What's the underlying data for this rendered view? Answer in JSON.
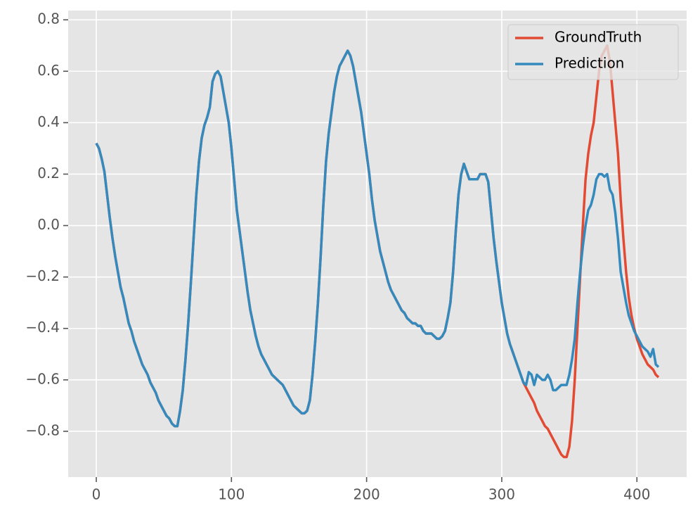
{
  "chart_data": {
    "type": "line",
    "x": [
      0,
      2,
      4,
      6,
      8,
      10,
      12,
      14,
      16,
      18,
      20,
      22,
      24,
      26,
      28,
      30,
      32,
      34,
      36,
      38,
      40,
      42,
      44,
      46,
      48,
      50,
      52,
      54,
      56,
      58,
      60,
      62,
      64,
      66,
      68,
      70,
      72,
      74,
      76,
      78,
      80,
      82,
      84,
      86,
      88,
      90,
      92,
      94,
      96,
      98,
      100,
      102,
      104,
      106,
      108,
      110,
      112,
      114,
      116,
      118,
      120,
      122,
      124,
      126,
      128,
      130,
      132,
      134,
      136,
      138,
      140,
      142,
      144,
      146,
      148,
      150,
      152,
      154,
      156,
      158,
      160,
      162,
      164,
      166,
      168,
      170,
      172,
      174,
      176,
      178,
      180,
      182,
      184,
      186,
      188,
      190,
      192,
      194,
      196,
      198,
      200,
      202,
      204,
      206,
      208,
      210,
      212,
      214,
      216,
      218,
      220,
      222,
      224,
      226,
      228,
      230,
      232,
      234,
      236,
      238,
      240,
      242,
      244,
      246,
      248,
      250,
      252,
      254,
      256,
      258,
      260,
      262,
      264,
      266,
      268,
      270,
      272,
      274,
      276,
      278,
      280,
      282,
      284,
      286,
      288,
      290,
      292,
      294,
      296,
      298,
      300,
      302,
      304,
      306,
      308,
      310,
      312,
      314,
      316,
      318,
      320,
      322,
      324,
      326,
      328,
      330,
      332,
      334,
      336,
      338,
      340,
      342,
      344,
      346,
      348,
      350,
      352,
      354,
      356,
      358,
      360,
      362,
      364,
      366,
      368,
      370,
      372,
      374,
      376,
      378,
      380,
      382,
      384,
      386,
      388,
      390,
      392,
      394,
      396,
      398,
      400,
      402,
      404,
      406,
      408,
      410,
      412,
      414,
      416
    ],
    "series": [
      {
        "name": "GroundTruth",
        "color": "#E24A33",
        "values": [
          0.32,
          0.3,
          0.26,
          0.21,
          0.12,
          0.03,
          -0.05,
          -0.12,
          -0.18,
          -0.24,
          -0.28,
          -0.33,
          -0.38,
          -0.41,
          -0.45,
          -0.48,
          -0.51,
          -0.54,
          -0.56,
          -0.58,
          -0.61,
          -0.63,
          -0.65,
          -0.68,
          -0.7,
          -0.72,
          -0.74,
          -0.75,
          -0.77,
          -0.78,
          -0.78,
          -0.72,
          -0.64,
          -0.52,
          -0.38,
          -0.22,
          -0.05,
          0.12,
          0.25,
          0.34,
          0.39,
          0.42,
          0.46,
          0.56,
          0.59,
          0.6,
          0.58,
          0.52,
          0.46,
          0.4,
          0.3,
          0.18,
          0.06,
          -0.02,
          -0.1,
          -0.18,
          -0.26,
          -0.33,
          -0.38,
          -0.43,
          -0.47,
          -0.5,
          -0.52,
          -0.54,
          -0.56,
          -0.58,
          -0.59,
          -0.6,
          -0.61,
          -0.62,
          -0.64,
          -0.66,
          -0.68,
          -0.7,
          -0.71,
          -0.72,
          -0.73,
          -0.73,
          -0.72,
          -0.68,
          -0.58,
          -0.45,
          -0.3,
          -0.12,
          0.08,
          0.25,
          0.36,
          0.44,
          0.52,
          0.58,
          0.62,
          0.64,
          0.66,
          0.68,
          0.66,
          0.62,
          0.56,
          0.5,
          0.44,
          0.36,
          0.28,
          0.2,
          0.1,
          0.02,
          -0.04,
          -0.1,
          -0.14,
          -0.18,
          -0.22,
          -0.25,
          -0.27,
          -0.29,
          -0.31,
          -0.33,
          -0.34,
          -0.36,
          -0.37,
          -0.38,
          -0.38,
          -0.39,
          -0.39,
          -0.41,
          -0.42,
          -0.42,
          -0.42,
          -0.43,
          -0.44,
          -0.44,
          -0.43,
          -0.41,
          -0.36,
          -0.3,
          -0.18,
          -0.02,
          0.12,
          0.2,
          0.24,
          0.21,
          0.18,
          0.18,
          0.18,
          0.18,
          0.2,
          0.2,
          0.2,
          0.17,
          0.06,
          -0.05,
          -0.14,
          -0.22,
          -0.3,
          -0.36,
          -0.42,
          -0.46,
          -0.49,
          -0.52,
          -0.55,
          -0.58,
          -0.61,
          -0.63,
          -0.65,
          -0.67,
          -0.69,
          -0.72,
          -0.74,
          -0.76,
          -0.78,
          -0.79,
          -0.81,
          -0.83,
          -0.85,
          -0.87,
          -0.89,
          -0.9,
          -0.9,
          -0.86,
          -0.76,
          -0.6,
          -0.4,
          -0.2,
          0.0,
          0.18,
          0.28,
          0.35,
          0.4,
          0.5,
          0.6,
          0.66,
          0.68,
          0.7,
          0.64,
          0.52,
          0.4,
          0.28,
          0.1,
          -0.05,
          -0.18,
          -0.28,
          -0.35,
          -0.4,
          -0.44,
          -0.47,
          -0.5,
          -0.52,
          -0.54,
          -0.55,
          -0.56,
          -0.58,
          -0.59
        ]
      },
      {
        "name": "Prediction",
        "color": "#348ABD",
        "values": [
          0.32,
          0.3,
          0.26,
          0.21,
          0.12,
          0.03,
          -0.05,
          -0.12,
          -0.18,
          -0.24,
          -0.28,
          -0.33,
          -0.38,
          -0.41,
          -0.45,
          -0.48,
          -0.51,
          -0.54,
          -0.56,
          -0.58,
          -0.61,
          -0.63,
          -0.65,
          -0.68,
          -0.7,
          -0.72,
          -0.74,
          -0.75,
          -0.77,
          -0.78,
          -0.78,
          -0.72,
          -0.64,
          -0.52,
          -0.38,
          -0.22,
          -0.05,
          0.12,
          0.25,
          0.34,
          0.39,
          0.42,
          0.46,
          0.56,
          0.59,
          0.6,
          0.58,
          0.52,
          0.46,
          0.4,
          0.3,
          0.18,
          0.06,
          -0.02,
          -0.1,
          -0.18,
          -0.26,
          -0.33,
          -0.38,
          -0.43,
          -0.47,
          -0.5,
          -0.52,
          -0.54,
          -0.56,
          -0.58,
          -0.59,
          -0.6,
          -0.61,
          -0.62,
          -0.64,
          -0.66,
          -0.68,
          -0.7,
          -0.71,
          -0.72,
          -0.73,
          -0.73,
          -0.72,
          -0.68,
          -0.58,
          -0.45,
          -0.3,
          -0.12,
          0.08,
          0.25,
          0.36,
          0.44,
          0.52,
          0.58,
          0.62,
          0.64,
          0.66,
          0.68,
          0.66,
          0.62,
          0.56,
          0.5,
          0.44,
          0.36,
          0.28,
          0.2,
          0.1,
          0.02,
          -0.04,
          -0.1,
          -0.14,
          -0.18,
          -0.22,
          -0.25,
          -0.27,
          -0.29,
          -0.31,
          -0.33,
          -0.34,
          -0.36,
          -0.37,
          -0.38,
          -0.38,
          -0.39,
          -0.39,
          -0.41,
          -0.42,
          -0.42,
          -0.42,
          -0.43,
          -0.44,
          -0.44,
          -0.43,
          -0.41,
          -0.36,
          -0.3,
          -0.18,
          -0.02,
          0.12,
          0.2,
          0.24,
          0.21,
          0.18,
          0.18,
          0.18,
          0.18,
          0.2,
          0.2,
          0.2,
          0.17,
          0.06,
          -0.05,
          -0.14,
          -0.22,
          -0.3,
          -0.36,
          -0.42,
          -0.46,
          -0.49,
          -0.52,
          -0.55,
          -0.58,
          -0.61,
          -0.62,
          -0.57,
          -0.58,
          -0.62,
          -0.58,
          -0.59,
          -0.6,
          -0.6,
          -0.58,
          -0.6,
          -0.64,
          -0.64,
          -0.63,
          -0.62,
          -0.62,
          -0.62,
          -0.58,
          -0.52,
          -0.44,
          -0.3,
          -0.18,
          -0.08,
          0.0,
          0.06,
          0.08,
          0.12,
          0.18,
          0.2,
          0.2,
          0.19,
          0.2,
          0.14,
          0.12,
          0.05,
          -0.05,
          -0.18,
          -0.24,
          -0.3,
          -0.35,
          -0.38,
          -0.41,
          -0.43,
          -0.45,
          -0.47,
          -0.48,
          -0.49,
          -0.51,
          -0.48,
          -0.54,
          -0.55
        ]
      }
    ],
    "xlim": [
      -20.8,
      436.8
    ],
    "ylim": [
      -0.978,
      0.836
    ],
    "xticks": [
      0,
      100,
      200,
      300,
      400
    ],
    "yticks": [
      {
        "value": -0.8,
        "label": "−0.8"
      },
      {
        "value": -0.6,
        "label": "−0.6"
      },
      {
        "value": -0.4,
        "label": "−0.4"
      },
      {
        "value": -0.2,
        "label": "−0.2"
      },
      {
        "value": 0,
        "label": "0.0"
      },
      0.2,
      0.4,
      0.6,
      0.8
    ],
    "grid": true,
    "legend": "upper right"
  }
}
